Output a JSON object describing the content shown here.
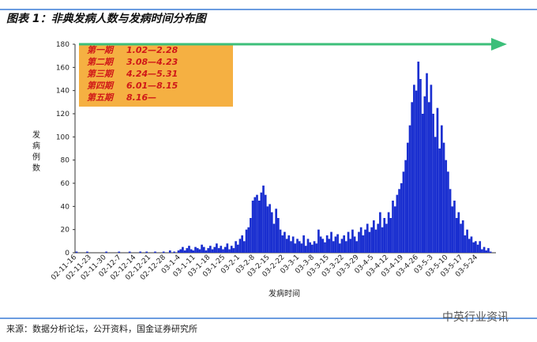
{
  "chart_data": {
    "type": "bar",
    "title": "图表 1：非典发病人数与发病时间分布图",
    "y_label": "发病例数",
    "x_label": "发病时间",
    "source": "来源：数据分析论坛，公开资料，国金证券研究所",
    "watermark": "中英行业资讯",
    "periods": [
      {
        "name": "第一期",
        "range": "1.02—2.28"
      },
      {
        "name": "第二期",
        "range": "3.08—4.23"
      },
      {
        "name": "第三期",
        "range": "4.24—5.31"
      },
      {
        "name": "第四期",
        "range": "6.01—8.15"
      },
      {
        "name": "第五期",
        "range": "8.16—"
      }
    ],
    "color": "#1a2fd0",
    "ylim": [
      0,
      180
    ],
    "yticks": [
      0,
      20,
      40,
      60,
      80,
      100,
      120,
      140,
      160,
      180
    ],
    "categories": [
      "02-11-16",
      null,
      null,
      null,
      null,
      null,
      null,
      "02-11-23",
      null,
      null,
      null,
      null,
      null,
      null,
      "02-11-30",
      null,
      null,
      null,
      null,
      null,
      null,
      "02-12-7",
      null,
      null,
      null,
      null,
      null,
      null,
      "02-12-14",
      null,
      null,
      null,
      null,
      null,
      null,
      "02-12-21",
      null,
      null,
      null,
      null,
      null,
      null,
      "02-12-28",
      null,
      null,
      null,
      null,
      null,
      null,
      "03-1-4",
      null,
      null,
      null,
      null,
      null,
      null,
      "03-1-11",
      null,
      null,
      null,
      null,
      null,
      null,
      "03-1-18",
      null,
      null,
      null,
      null,
      null,
      null,
      "03-1-25",
      null,
      null,
      null,
      null,
      null,
      null,
      "03-2-1",
      null,
      null,
      null,
      null,
      null,
      null,
      "03-2-8",
      null,
      null,
      null,
      null,
      null,
      null,
      "03-2-15",
      null,
      null,
      null,
      null,
      null,
      null,
      "03-2-22",
      null,
      null,
      null,
      null,
      null,
      null,
      "03-3-1",
      null,
      null,
      null,
      null,
      null,
      null,
      "03-3-8",
      null,
      null,
      null,
      null,
      null,
      null,
      "03-3-15",
      null,
      null,
      null,
      null,
      null,
      null,
      "03-3-22",
      null,
      null,
      null,
      null,
      null,
      null,
      "03-3-29",
      null,
      null,
      null,
      null,
      null,
      null,
      "03-4-5",
      null,
      null,
      null,
      null,
      null,
      null,
      "03-4-12",
      null,
      null,
      null,
      null,
      null,
      null,
      "03-4-19",
      null,
      null,
      null,
      null,
      null,
      null,
      "03-4-26",
      null,
      null,
      null,
      null,
      null,
      null,
      "03-5-3",
      null,
      null,
      null,
      null,
      null,
      null,
      "03-5-10",
      null,
      null,
      null,
      null,
      null,
      null,
      "03-5-17",
      null,
      null,
      null,
      null,
      null,
      null,
      "03-5-24",
      null,
      null,
      null,
      null,
      null,
      null
    ],
    "values": [
      1,
      0,
      0,
      0,
      0,
      1,
      0,
      0,
      0,
      0,
      0,
      0,
      0,
      0,
      1,
      0,
      0,
      0,
      0,
      0,
      1,
      0,
      0,
      0,
      0,
      1,
      0,
      0,
      0,
      0,
      1,
      0,
      0,
      1,
      0,
      0,
      0,
      1,
      0,
      0,
      0,
      1,
      0,
      0,
      2,
      0,
      1,
      0,
      2,
      3,
      5,
      2,
      4,
      6,
      3,
      2,
      5,
      4,
      3,
      7,
      5,
      2,
      4,
      6,
      3,
      5,
      8,
      4,
      6,
      3,
      5,
      8,
      3,
      6,
      4,
      10,
      7,
      12,
      15,
      10,
      20,
      22,
      30,
      45,
      48,
      50,
      45,
      52,
      58,
      50,
      40,
      42,
      35,
      25,
      38,
      30,
      20,
      15,
      18,
      12,
      15,
      10,
      14,
      8,
      12,
      10,
      8,
      15,
      6,
      12,
      9,
      7,
      10,
      8,
      20,
      14,
      12,
      9,
      15,
      12,
      18,
      10,
      14,
      16,
      8,
      12,
      15,
      10,
      18,
      12,
      20,
      14,
      10,
      18,
      22,
      15,
      20,
      25,
      18,
      22,
      28,
      20,
      25,
      35,
      22,
      30,
      25,
      35,
      30,
      45,
      40,
      50,
      55,
      60,
      70,
      80,
      95,
      110,
      130,
      145,
      140,
      165,
      150,
      120,
      135,
      155,
      130,
      145,
      120,
      100,
      125,
      90,
      110,
      95,
      80,
      70,
      55,
      40,
      45,
      30,
      35,
      25,
      28,
      15,
      20,
      12,
      14,
      9,
      10,
      7,
      10,
      3,
      5,
      2,
      4,
      1
    ]
  }
}
